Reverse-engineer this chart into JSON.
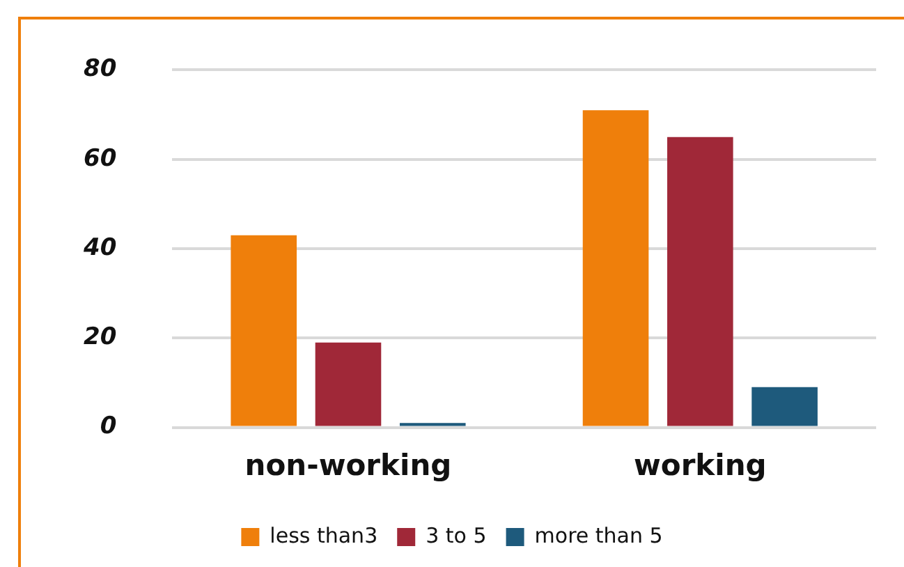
{
  "chart_data": {
    "type": "bar",
    "categories": [
      "non-working",
      "working"
    ],
    "series": [
      {
        "name": "less than3",
        "color": "#ef7f0b",
        "values": [
          43,
          71
        ]
      },
      {
        "name": "3 to 5",
        "color": "#a02838",
        "values": [
          19,
          65
        ]
      },
      {
        "name": "more than 5",
        "color": "#1e5a7c",
        "values": [
          1,
          9
        ]
      }
    ],
    "ylim": [
      0,
      80
    ],
    "yticks": [
      0,
      20,
      40,
      60,
      80
    ],
    "grid": "y",
    "legend": "bottom"
  }
}
